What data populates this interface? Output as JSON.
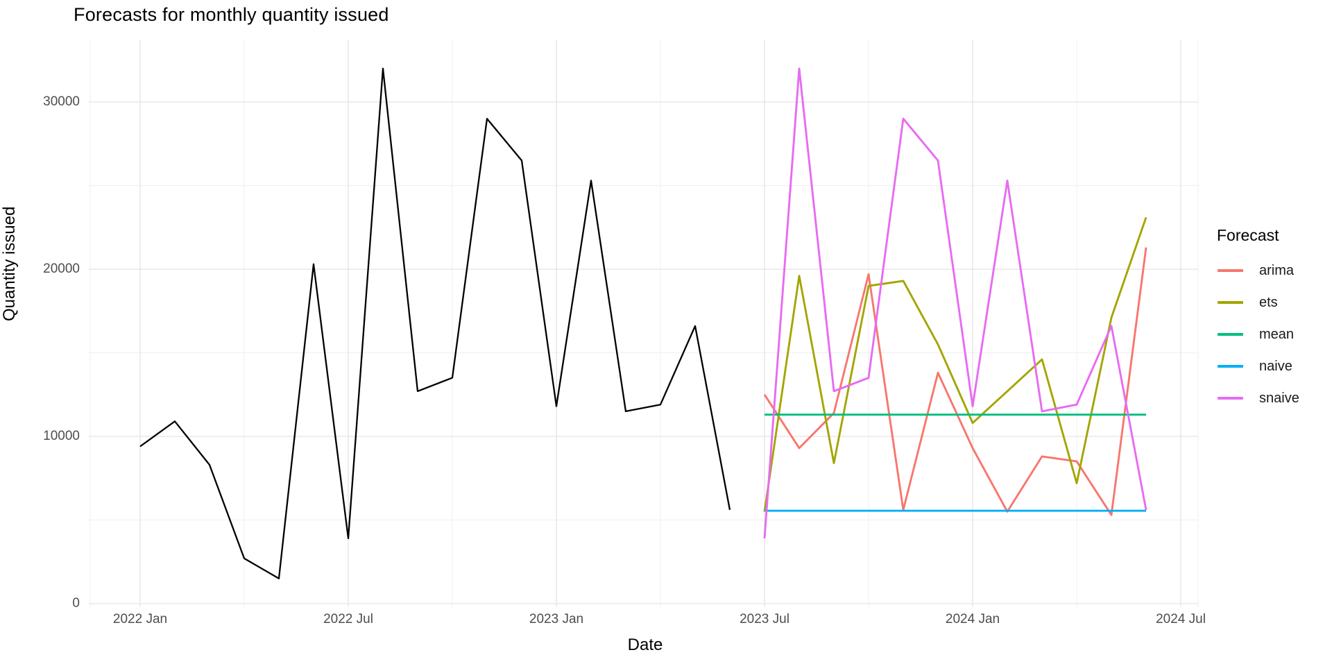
{
  "header": {
    "title": "Forecasts for monthly quantity issued"
  },
  "axes": {
    "x_label": "Date",
    "y_label": "Quantity issued",
    "x_tick_labels": [
      "2022 Jan",
      "2022 Jul",
      "2023 Jan",
      "2023 Jul",
      "2024 Jan",
      "2024 Jul"
    ],
    "y_tick_labels": [
      "0",
      "10000",
      "20000",
      "30000"
    ]
  },
  "legend": {
    "title": "Forecast",
    "items": [
      {
        "label": "arima",
        "color": "#F8766D"
      },
      {
        "label": "ets",
        "color": "#A3A500"
      },
      {
        "label": "mean",
        "color": "#00BF7D"
      },
      {
        "label": "naive",
        "color": "#00B0F6"
      },
      {
        "label": "snaive",
        "color": "#E76BF3"
      }
    ]
  },
  "chart_data": {
    "type": "line",
    "title": "Forecasts for monthly quantity issued",
    "xlabel": "Date",
    "ylabel": "Quantity issued",
    "months": [
      "2022 Jan",
      "2022 Feb",
      "2022 Mar",
      "2022 Apr",
      "2022 May",
      "2022 Jun",
      "2022 Jul",
      "2022 Aug",
      "2022 Sep",
      "2022 Oct",
      "2022 Nov",
      "2022 Dec",
      "2023 Jan",
      "2023 Feb",
      "2023 Mar",
      "2023 Apr",
      "2023 May",
      "2023 Jun",
      "2023 Jul",
      "2023 Aug",
      "2023 Sep",
      "2023 Oct",
      "2023 Nov",
      "2023 Dec",
      "2024 Jan",
      "2024 Feb",
      "2024 Mar",
      "2024 Apr",
      "2024 May",
      "2024 Jun"
    ],
    "x_tick_positions": [
      0,
      6,
      12,
      18,
      24,
      30
    ],
    "x_tick_labels": [
      "2022 Jan",
      "2022 Jul",
      "2023 Jan",
      "2023 Jul",
      "2024 Jan",
      "2024 Jul"
    ],
    "y_ticks": [
      0,
      10000,
      20000,
      30000
    ],
    "y_minor_ticks": [
      5000,
      15000,
      25000
    ],
    "x_minor_tick_positions": [
      3,
      9,
      15,
      21,
      27
    ],
    "ylim": [
      0,
      33700
    ],
    "grid": true,
    "legend_position": "right",
    "legend_title": "Forecast",
    "series": [
      {
        "name": "actual",
        "color": "#000000",
        "width": 2.3,
        "start_index": 0,
        "values": [
          9400,
          10900,
          8300,
          2700,
          1500,
          20300,
          3900,
          32000,
          12700,
          13500,
          29000,
          26500,
          11800,
          25300,
          11500,
          11900,
          16600,
          5600
        ]
      },
      {
        "name": "arima",
        "color": "#F8766D",
        "width": 2.9,
        "start_index": 18,
        "values": [
          12500,
          9300,
          11400,
          19700,
          5600,
          13800,
          9300,
          5500,
          8800,
          8500,
          5300,
          21300
        ]
      },
      {
        "name": "ets",
        "color": "#A3A500",
        "width": 2.9,
        "start_index": 18,
        "values": [
          5500,
          19600,
          8400,
          19000,
          19300,
          15500,
          10800,
          12700,
          14600,
          7200,
          17100,
          23100
        ]
      },
      {
        "name": "mean",
        "color": "#00BF7D",
        "width": 2.9,
        "start_index": 18,
        "values": [
          11300,
          11300,
          11300,
          11300,
          11300,
          11300,
          11300,
          11300,
          11300,
          11300,
          11300,
          11300
        ]
      },
      {
        "name": "naive",
        "color": "#00B0F6",
        "width": 2.9,
        "start_index": 18,
        "values": [
          5550,
          5550,
          5550,
          5550,
          5550,
          5550,
          5550,
          5550,
          5550,
          5550,
          5550,
          5550
        ]
      },
      {
        "name": "snaive",
        "color": "#E76BF3",
        "width": 2.9,
        "start_index": 18,
        "values": [
          3900,
          32000,
          12700,
          13500,
          29000,
          26500,
          11800,
          25300,
          11500,
          11900,
          16600,
          5600
        ]
      }
    ]
  }
}
